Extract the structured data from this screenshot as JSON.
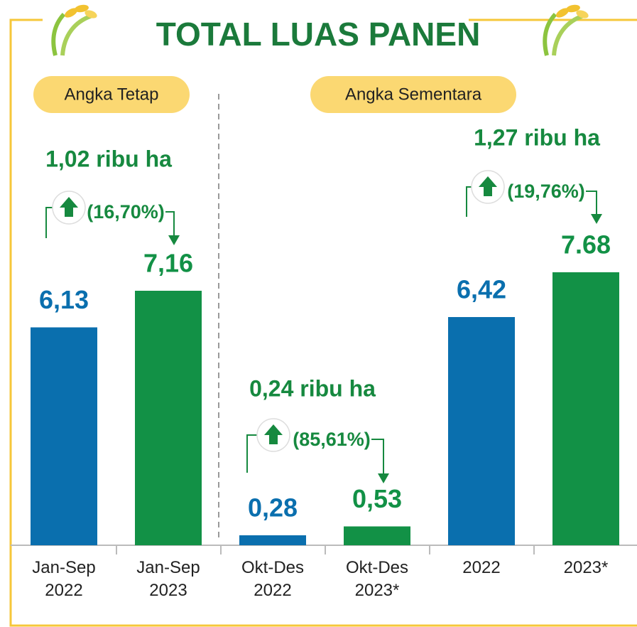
{
  "chart_data": {
    "type": "bar",
    "title": "TOTAL LUAS PANEN",
    "groups": [
      "Angka Tetap",
      "Angka Sementara"
    ],
    "categories": [
      "Jan-Sep 2022",
      "Jan-Sep 2023",
      "Okt-Des 2022",
      "Okt-Des 2023*",
      "2022",
      "2023*"
    ],
    "values": [
      6.13,
      7.16,
      0.28,
      0.53,
      6.42,
      7.68
    ],
    "value_labels": [
      "6,13",
      "7,16",
      "0,28",
      "0,53",
      "6,42",
      "7.68"
    ],
    "colors": [
      "#0a6fae",
      "#129146",
      "#0a6fae",
      "#129146",
      "#0a6fae",
      "#129146"
    ],
    "annotations": [
      {
        "text": "1,02 ribu ha",
        "change": "(16,70%)"
      },
      {
        "text": "0,24 ribu ha",
        "change": "(85,61%)"
      },
      {
        "text": "1,27 ribu ha",
        "change": "(19,76%)"
      }
    ]
  }
}
